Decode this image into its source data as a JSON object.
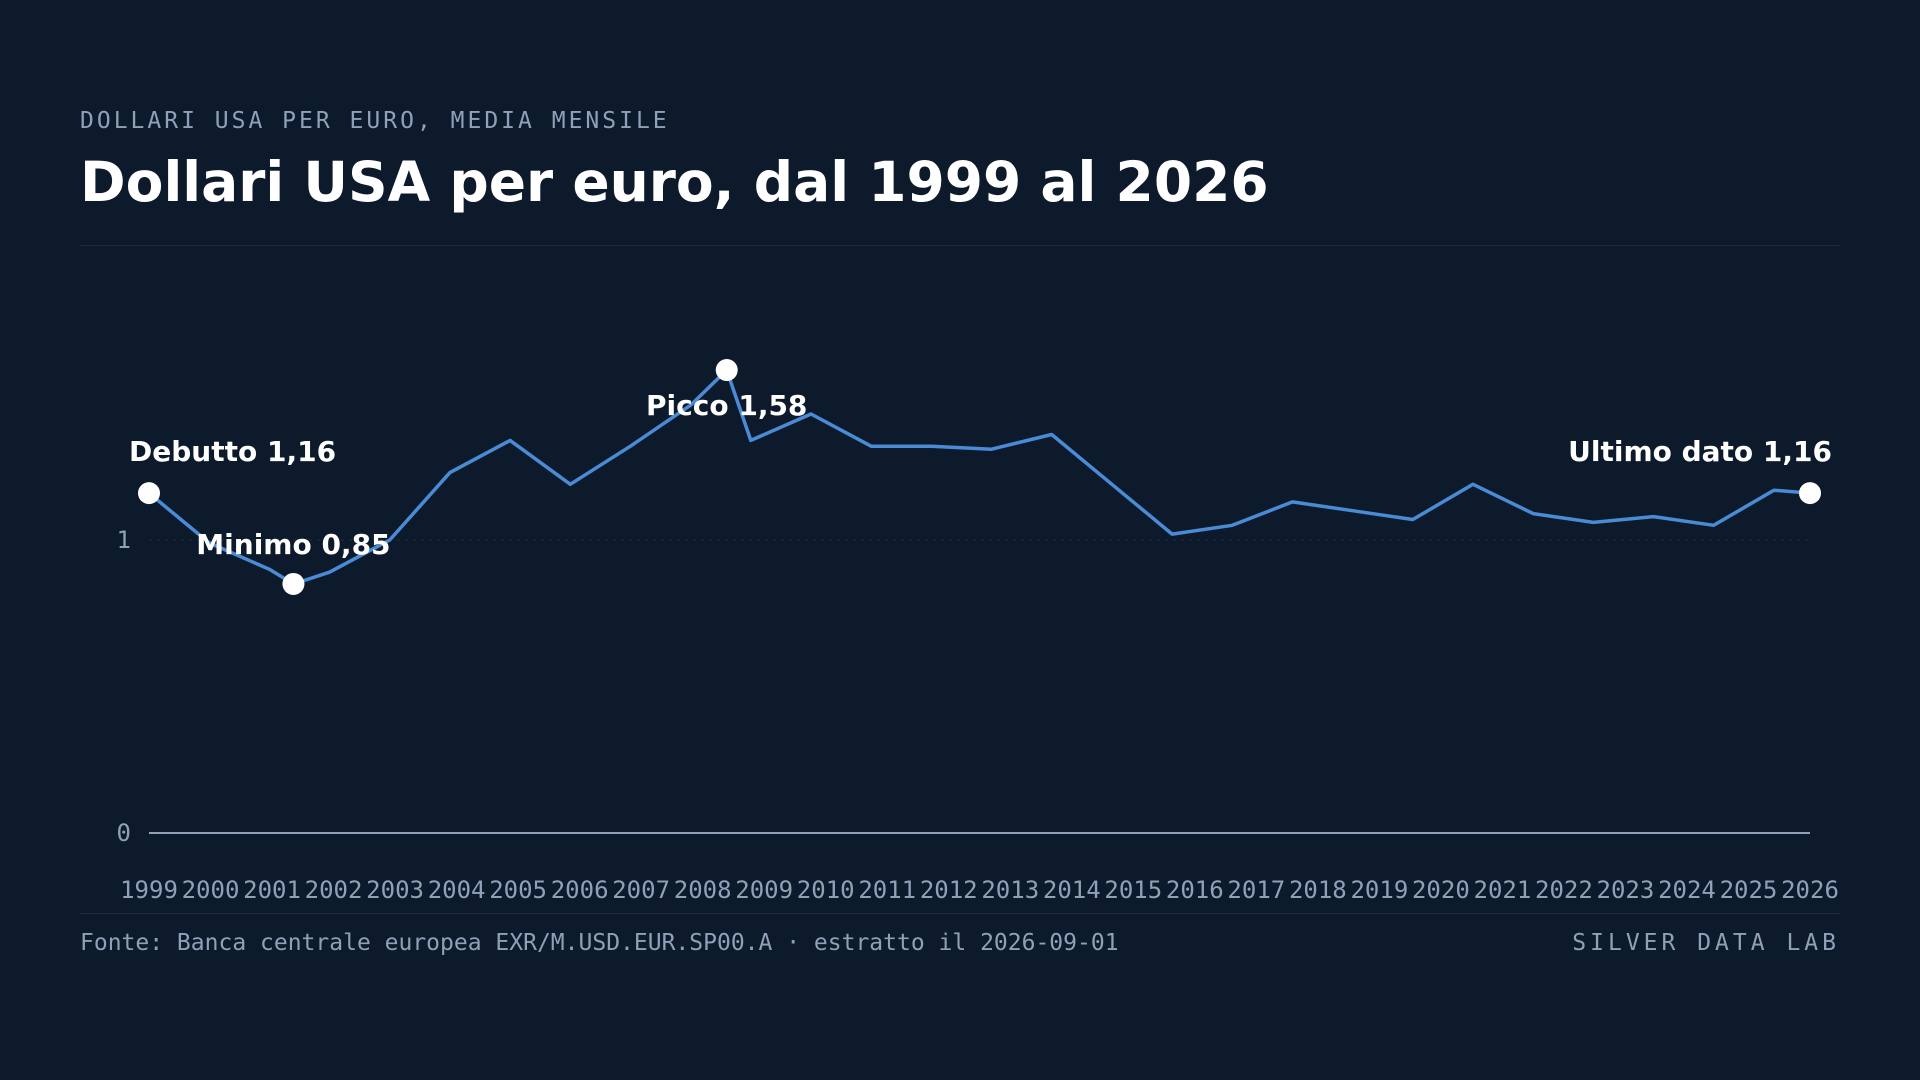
{
  "header": {
    "kicker": "DOLLARI USA PER EURO, MEDIA MENSILE",
    "title": "Dollari USA per euro, dal 1999 al 2026"
  },
  "footer": {
    "source": "Fonte: Banca centrale europea EXR/M.USD.EUR.SP00.A · estratto il 2026-09-01",
    "brand": "SILVER DATA LAB"
  },
  "colors": {
    "background": "#0d1a2b",
    "line": "#4a8bd6",
    "marker": "#ffffff",
    "axis_text": "#8fa1b8",
    "baseline": "#8fa1b8"
  },
  "chart_data": {
    "type": "line",
    "title": "Dollari USA per euro, dal 1999 al 2026",
    "xlabel": "",
    "ylabel": "",
    "ylim": [
      0,
      1.7
    ],
    "yticks": [
      0,
      1
    ],
    "ytick_labels": [
      "0",
      "1"
    ],
    "grid": false,
    "xtick_labels": [
      "1999",
      "2000",
      "2001",
      "2002",
      "2003",
      "2004",
      "2005",
      "2006",
      "2007",
      "2008",
      "2009",
      "2010",
      "2011",
      "2012",
      "2013",
      "2014",
      "2015",
      "2016",
      "2017",
      "2018",
      "2019",
      "2020",
      "2021",
      "2022",
      "2023",
      "2024",
      "2025",
      "2026"
    ],
    "series": [
      {
        "points": [
          [
            1999.0,
            1.16
          ],
          [
            2000.0,
            0.99
          ],
          [
            2001.0,
            0.9
          ],
          [
            2001.4,
            0.85
          ],
          [
            2002.0,
            0.89
          ],
          [
            2003.0,
            1.0
          ],
          [
            2004.0,
            1.23
          ],
          [
            2005.0,
            1.34
          ],
          [
            2006.0,
            1.19
          ],
          [
            2007.0,
            1.32
          ],
          [
            2008.0,
            1.46
          ],
          [
            2008.6,
            1.58
          ],
          [
            2009.0,
            1.34
          ],
          [
            2010.0,
            1.43
          ],
          [
            2011.0,
            1.32
          ],
          [
            2012.0,
            1.32
          ],
          [
            2013.0,
            1.31
          ],
          [
            2014.0,
            1.36
          ],
          [
            2015.0,
            1.19
          ],
          [
            2016.0,
            1.02
          ],
          [
            2017.0,
            1.05
          ],
          [
            2018.0,
            1.13
          ],
          [
            2019.0,
            1.1
          ],
          [
            2020.0,
            1.07
          ],
          [
            2021.0,
            1.19
          ],
          [
            2022.0,
            1.09
          ],
          [
            2023.0,
            1.06
          ],
          [
            2024.0,
            1.08
          ],
          [
            2025.0,
            1.05
          ],
          [
            2026.0,
            1.17
          ],
          [
            2026.6,
            1.16
          ]
        ]
      }
    ],
    "annotations": [
      {
        "label": "Debutto 1,16",
        "x": 1999.0,
        "y": 1.16,
        "anchor": "start-above"
      },
      {
        "label": "Minimo 0,85",
        "x": 2001.4,
        "y": 0.85,
        "anchor": "middle-above"
      },
      {
        "label": "Picco 1,58",
        "x": 2008.6,
        "y": 1.58,
        "anchor": "middle-below"
      },
      {
        "label": "Ultimo dato 1,16",
        "x": 2026.6,
        "y": 1.16,
        "anchor": "end-above"
      }
    ]
  }
}
